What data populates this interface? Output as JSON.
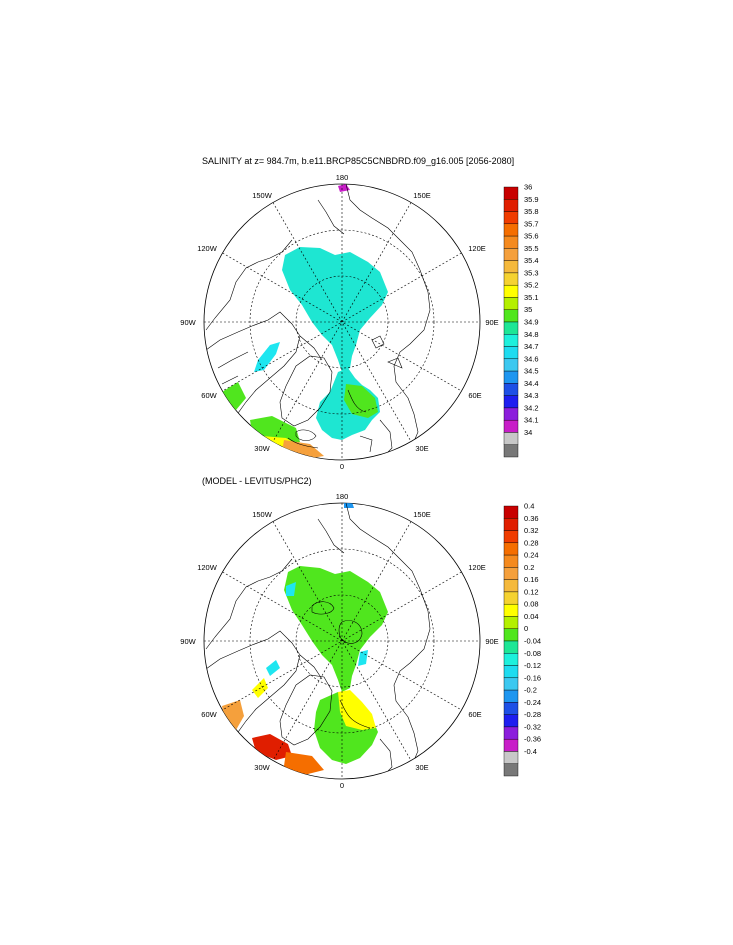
{
  "panel1": {
    "title": "SALINITY at z= 984.7m, b.e11.BRCP85C5CNBDRD.f09_g16.005 [2056-2080]",
    "lon_labels": {
      "top": "180",
      "b150w": "150W",
      "b150e": "150E",
      "b120w": "120W",
      "b120e": "120E",
      "b90w": "90W",
      "b90e": "90E",
      "b60w": "60W",
      "b60e": "60E",
      "b30w": "30W",
      "b30e": "30E",
      "bottom": "0"
    },
    "colorbar": {
      "labels": [
        "36",
        "35.9",
        "35.8",
        "35.7",
        "35.6",
        "35.5",
        "35.4",
        "35.3",
        "35.2",
        "35.1",
        "35",
        "34.9",
        "34.8",
        "34.7",
        "34.6",
        "34.5",
        "34.4",
        "34.3",
        "34.2",
        "34.1",
        "34"
      ],
      "colors": [
        "#c80000",
        "#e01e00",
        "#f03c00",
        "#f56e00",
        "#f58a1e",
        "#f5a03c",
        "#f5b93c",
        "#f5d230",
        "#ffff00",
        "#b4f000",
        "#50e61e",
        "#1ee696",
        "#1ef0dc",
        "#1edcf0",
        "#3cc8f0",
        "#1e96f0",
        "#1e50e6",
        "#1e1ef0",
        "#8c1edc",
        "#c81ec8",
        "#c8c8c8",
        "#787878"
      ]
    }
  },
  "panel2": {
    "title": "(MODEL - LEVITUS/PHC2)",
    "lon_labels": {
      "top": "180",
      "b150w": "150W",
      "b150e": "150E",
      "b120w": "120W",
      "b120e": "120E",
      "b90w": "90W",
      "b90e": "90E",
      "b60w": "60W",
      "b60e": "60E",
      "b30w": "30W",
      "b30e": "30E",
      "bottom": "0"
    },
    "colorbar": {
      "labels": [
        "0.4",
        "0.36",
        "0.32",
        "0.28",
        "0.24",
        "0.2",
        "0.16",
        "0.12",
        "0.08",
        "0.04",
        "0",
        "-0.04",
        "-0.08",
        "-0.12",
        "-0.16",
        "-0.2",
        "-0.24",
        "-0.28",
        "-0.32",
        "-0.36",
        "-0.4"
      ],
      "colors": [
        "#c80000",
        "#e01e00",
        "#f03c00",
        "#f56e00",
        "#f58a1e",
        "#f5a03c",
        "#f5b93c",
        "#f5d230",
        "#ffff00",
        "#b4f000",
        "#50e61e",
        "#1ee696",
        "#1ef0dc",
        "#1edcf0",
        "#3cc8f0",
        "#1e96f0",
        "#1e50e6",
        "#1e1ef0",
        "#8c1edc",
        "#c81ec8",
        "#c8c8c8",
        "#787878"
      ]
    }
  }
}
